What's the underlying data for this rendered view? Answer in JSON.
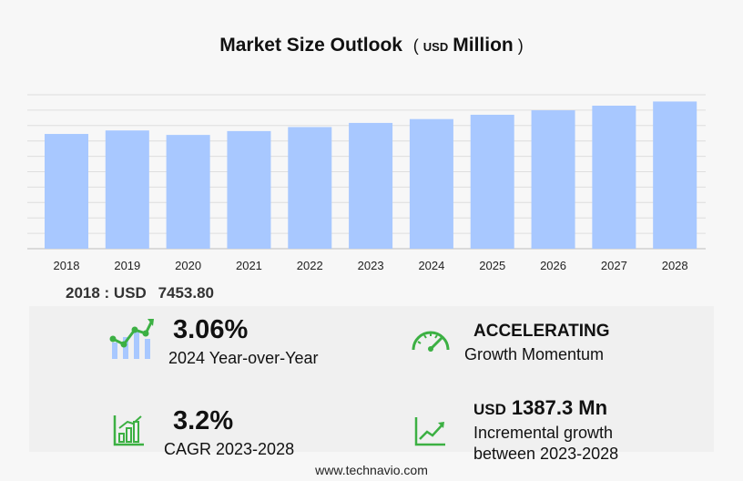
{
  "header": {
    "title": "Market Size Outlook",
    "currency": "USD",
    "unit": "Million"
  },
  "chart_data": {
    "type": "bar",
    "categories": [
      "2018",
      "2019",
      "2020",
      "2021",
      "2022",
      "2023",
      "2024",
      "2025",
      "2026",
      "2027",
      "2028"
    ],
    "values": [
      7453.8,
      7680,
      7390,
      7640,
      7900,
      8170,
      8420,
      8700,
      8990,
      9290,
      9560
    ],
    "ylim": [
      0,
      10000
    ],
    "grid": true,
    "bar_color": "#a8c8ff"
  },
  "base_figure": {
    "label": "2018 : USD",
    "value": "7453.80"
  },
  "kpis": {
    "yoy": {
      "value": "3.06%",
      "label": "2024 Year-over-Year"
    },
    "momentum": {
      "value": "ACCELERATING",
      "label": "Growth Momentum"
    },
    "cagr": {
      "value": "3.2%",
      "label": "CAGR 2023-2028"
    },
    "incremental": {
      "currency": "USD",
      "value": "1387.3 Mn",
      "label_line1": "Incremental growth",
      "label_line2": "between 2023-2028"
    }
  },
  "colors": {
    "icon_green": "#3cb043",
    "icon_blue": "#a8c8ff"
  },
  "footer": {
    "source": "www.technavio.com"
  }
}
